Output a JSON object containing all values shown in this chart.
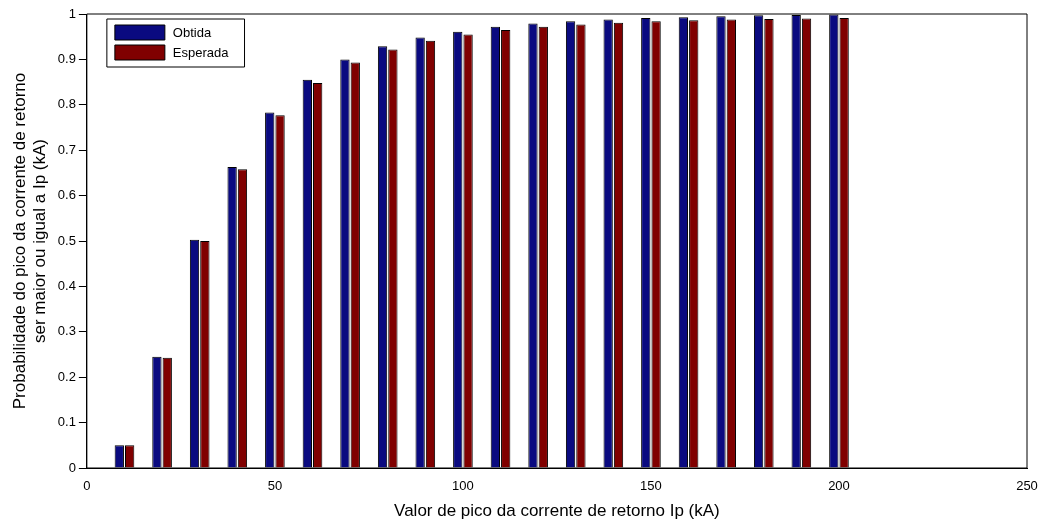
{
  "chart_data": {
    "type": "bar",
    "xlabel": "Valor de pico da corrente de retorno Ip (kA)",
    "ylabel": "Probabilidade do pico da corrente de retorno\nser maior ou igual a Ip (kA)",
    "x": [
      10,
      20,
      30,
      40,
      50,
      60,
      70,
      80,
      90,
      100,
      110,
      120,
      130,
      140,
      150,
      160,
      170,
      180,
      190,
      200
    ],
    "series": [
      {
        "name": "Obtida",
        "color": "#0a0a80",
        "values": [
          0.05,
          0.245,
          0.503,
          0.663,
          0.783,
          0.855,
          0.9,
          0.929,
          0.948,
          0.961,
          0.972,
          0.979,
          0.984,
          0.988,
          0.991,
          0.993,
          0.995,
          0.997,
          0.998,
          0.999
        ]
      },
      {
        "name": "Esperada",
        "color": "#800000",
        "values": [
          0.05,
          0.243,
          0.5,
          0.658,
          0.777,
          0.848,
          0.893,
          0.922,
          0.941,
          0.955,
          0.965,
          0.972,
          0.977,
          0.981,
          0.984,
          0.986,
          0.988,
          0.989,
          0.99,
          0.991
        ]
      }
    ],
    "xlim": [
      0,
      250
    ],
    "xticks": [
      0,
      50,
      100,
      150,
      200,
      250
    ],
    "ylim": [
      0,
      1
    ],
    "yticks": [
      0,
      0.1,
      0.2,
      0.3,
      0.4,
      0.5,
      0.6,
      0.7,
      0.8,
      0.9,
      1
    ],
    "grid": false,
    "legend": "top left"
  }
}
